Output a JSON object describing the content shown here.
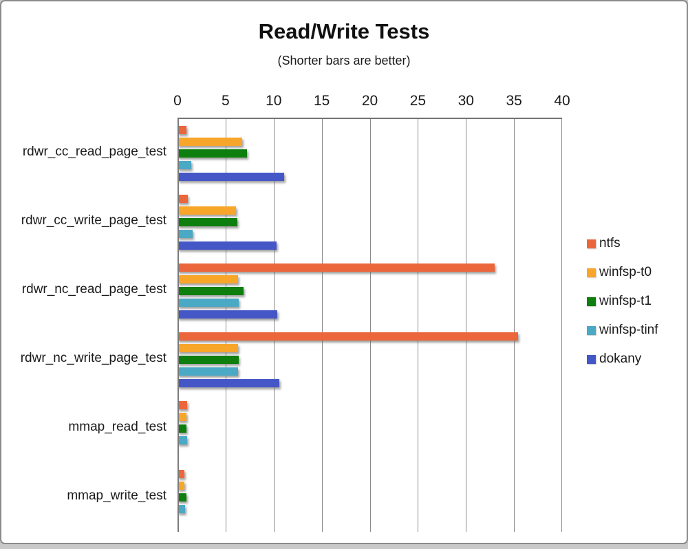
{
  "chart_data": {
    "type": "bar",
    "orientation": "horizontal",
    "title": "Read/Write Tests",
    "subtitle": "(Shorter bars are better)",
    "xlabel": "",
    "ylabel": "",
    "xlim": [
      0,
      40
    ],
    "xticks": [
      0,
      5,
      10,
      15,
      20,
      25,
      30,
      35,
      40
    ],
    "grid": true,
    "legend_position": "right",
    "categories": [
      "rdwr_cc_read_page_test",
      "rdwr_cc_write_page_test",
      "rdwr_nc_read_page_test",
      "rdwr_nc_write_page_test",
      "mmap_read_test",
      "mmap_write_test"
    ],
    "series": [
      {
        "name": "ntfs",
        "color": "#EC663B",
        "values": [
          0.9,
          1.1,
          33.0,
          35.4,
          1.0,
          0.7
        ]
      },
      {
        "name": "winfsp-t0",
        "color": "#F8A62A",
        "values": [
          6.7,
          6.1,
          6.3,
          6.3,
          0.9,
          0.7
        ]
      },
      {
        "name": "winfsp-t1",
        "color": "#0E7E0E",
        "values": [
          7.2,
          6.2,
          6.9,
          6.4,
          0.9,
          0.9
        ]
      },
      {
        "name": "winfsp-tinf",
        "color": "#4AA9C5",
        "values": [
          1.4,
          1.6,
          6.4,
          6.3,
          1.0,
          0.8
        ]
      },
      {
        "name": "dokany",
        "color": "#4557C6",
        "values": [
          11.1,
          10.3,
          10.4,
          10.6,
          null,
          null
        ]
      }
    ]
  }
}
